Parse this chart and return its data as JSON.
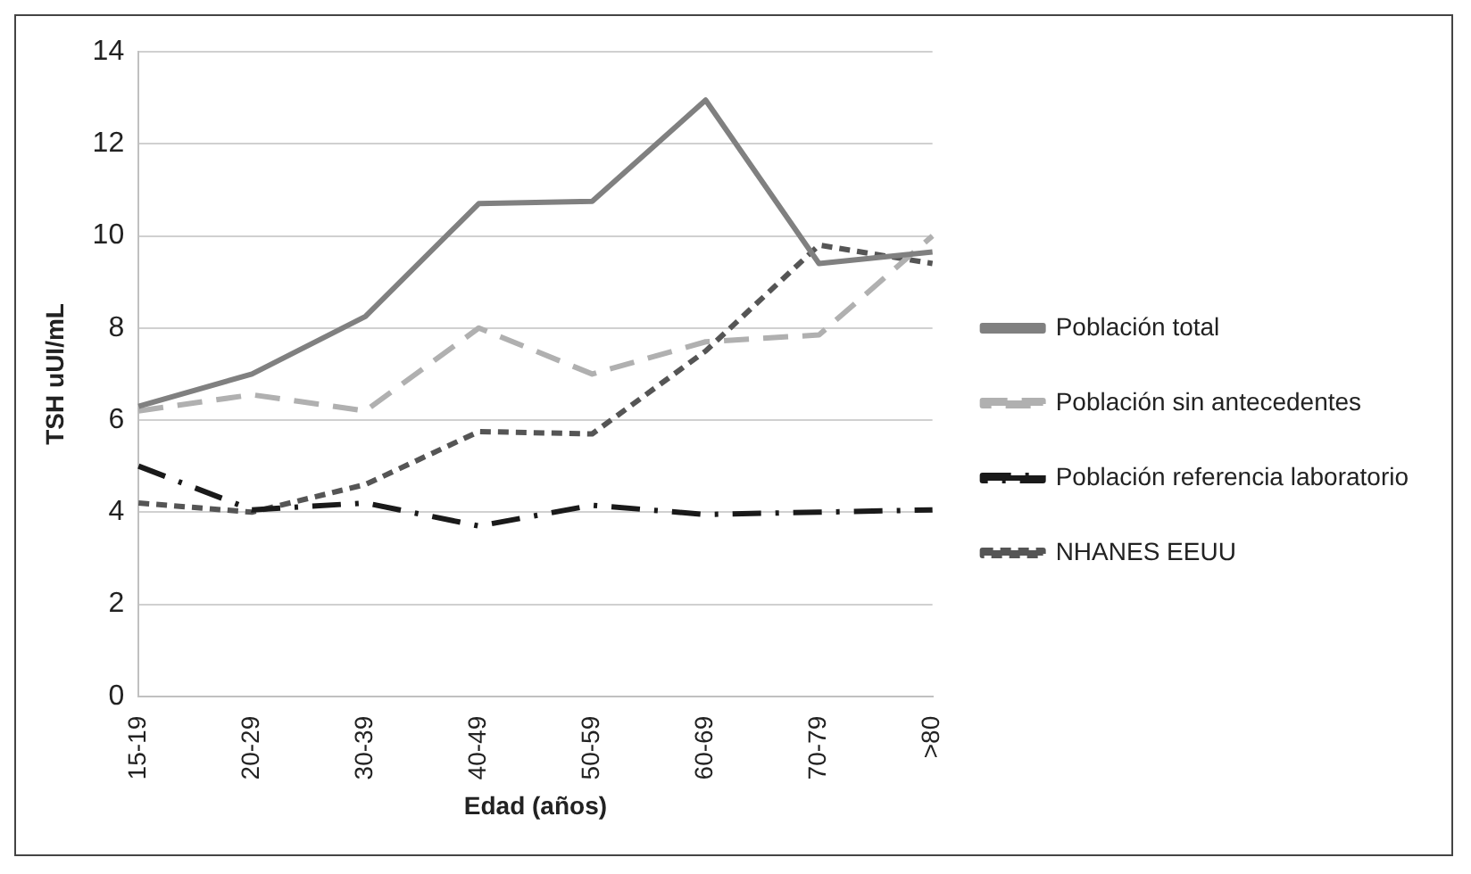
{
  "chart_data": {
    "type": "line",
    "xlabel": "Edad (años)",
    "ylabel": "TSH uUI/mL",
    "categories": [
      "15-19",
      "20-29",
      "30-39",
      "40-49",
      "50-59",
      "60-69",
      "70-79",
      ">80"
    ],
    "series": [
      {
        "name": "Población total",
        "color": "#808080",
        "line_style": "solid",
        "values": [
          6.3,
          7.0,
          8.25,
          10.7,
          10.75,
          12.95,
          9.4,
          9.65
        ]
      },
      {
        "name": "Población sin antecedentes",
        "color": "#b0b0b0",
        "line_style": "dashed",
        "values": [
          6.2,
          6.55,
          6.2,
          8.0,
          7.0,
          7.7,
          7.85,
          10.0
        ]
      },
      {
        "name": "Población referencia laboratorio",
        "color": "#1a1a1a",
        "line_style": "dashdot",
        "values": [
          5.0,
          4.05,
          4.2,
          3.7,
          4.15,
          3.95,
          4.0,
          4.05
        ]
      },
      {
        "name": "NHANES EEUU",
        "color": "#555555",
        "line_style": "dotted",
        "values": [
          4.2,
          4.0,
          4.6,
          5.75,
          5.7,
          7.5,
          9.8,
          9.4
        ]
      }
    ],
    "ylim": [
      0,
      14
    ],
    "yticks": [
      0,
      2,
      4,
      6,
      8,
      10,
      12,
      14
    ],
    "grid": "y",
    "legend": "right",
    "marker": "none"
  }
}
